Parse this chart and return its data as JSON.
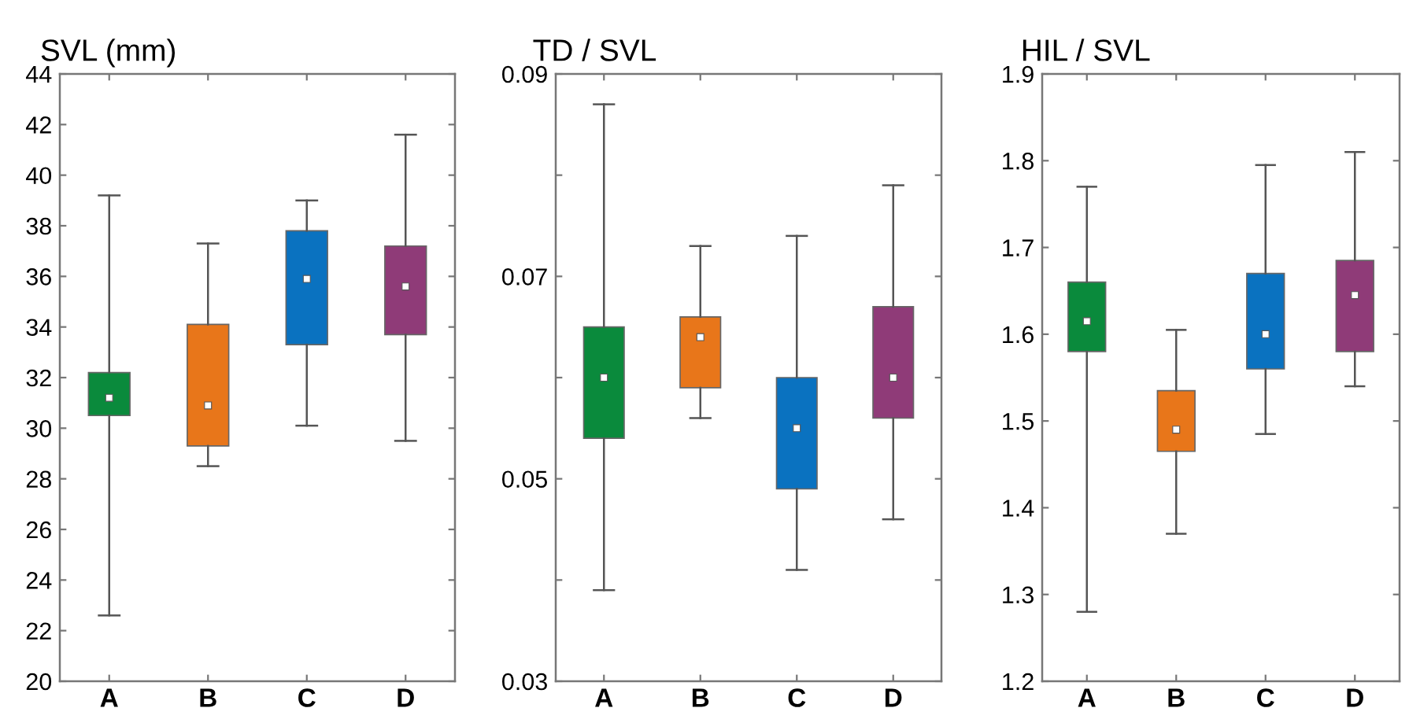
{
  "chart_data": [
    {
      "type": "box",
      "title": "SVL (mm)",
      "categories": [
        "A",
        "B",
        "C",
        "D"
      ],
      "colors": [
        "#0a8a3c",
        "#e8761a",
        "#0a72c0",
        "#8f3b78"
      ],
      "boxes": [
        {
          "low": 22.6,
          "q1": 30.5,
          "median": 31.2,
          "q3": 32.2,
          "high": 39.2
        },
        {
          "low": 28.5,
          "q1": 29.3,
          "median": 30.9,
          "q3": 34.1,
          "high": 37.3
        },
        {
          "low": 30.1,
          "q1": 33.3,
          "median": 35.9,
          "q3": 37.8,
          "high": 39.0
        },
        {
          "low": 29.5,
          "q1": 33.7,
          "median": 35.6,
          "q3": 37.2,
          "high": 41.6
        }
      ],
      "ylim": [
        20,
        44
      ],
      "yticks": [
        20,
        22,
        24,
        26,
        28,
        30,
        32,
        34,
        36,
        38,
        40,
        42,
        44
      ],
      "grid": false
    },
    {
      "type": "box",
      "title": "TD / SVL",
      "categories": [
        "A",
        "B",
        "C",
        "D"
      ],
      "colors": [
        "#0a8a3c",
        "#e8761a",
        "#0a72c0",
        "#8f3b78"
      ],
      "boxes": [
        {
          "low": 0.039,
          "q1": 0.054,
          "median": 0.06,
          "q3": 0.065,
          "high": 0.087
        },
        {
          "low": 0.056,
          "q1": 0.059,
          "median": 0.064,
          "q3": 0.066,
          "high": 0.073
        },
        {
          "low": 0.041,
          "q1": 0.049,
          "median": 0.055,
          "q3": 0.06,
          "high": 0.074
        },
        {
          "low": 0.046,
          "q1": 0.056,
          "median": 0.06,
          "q3": 0.067,
          "high": 0.079
        }
      ],
      "ylim": [
        0.03,
        0.09
      ],
      "yticks": [
        {
          "value": 0.03,
          "label": "0.03"
        },
        {
          "value": 0.04,
          "label": null
        },
        {
          "value": 0.05,
          "label": "0.05"
        },
        {
          "value": 0.06,
          "label": null
        },
        {
          "value": 0.07,
          "label": "0.07"
        },
        {
          "value": 0.08,
          "label": null
        },
        {
          "value": 0.09,
          "label": "0.09"
        }
      ],
      "grid": false
    },
    {
      "type": "box",
      "title": "HIL / SVL",
      "categories": [
        "A",
        "B",
        "C",
        "D"
      ],
      "colors": [
        "#0a8a3c",
        "#e8761a",
        "#0a72c0",
        "#8f3b78"
      ],
      "boxes": [
        {
          "low": 1.28,
          "q1": 1.58,
          "median": 1.615,
          "q3": 1.66,
          "high": 1.77
        },
        {
          "low": 1.37,
          "q1": 1.465,
          "median": 1.49,
          "q3": 1.535,
          "high": 1.605
        },
        {
          "low": 1.485,
          "q1": 1.56,
          "median": 1.6,
          "q3": 1.67,
          "high": 1.795
        },
        {
          "low": 1.54,
          "q1": 1.58,
          "median": 1.645,
          "q3": 1.685,
          "high": 1.81
        }
      ],
      "ylim": [
        1.2,
        1.9
      ],
      "yticks": [
        1.2,
        1.3,
        1.4,
        1.5,
        1.6,
        1.7,
        1.8,
        1.9
      ],
      "grid": false
    }
  ]
}
